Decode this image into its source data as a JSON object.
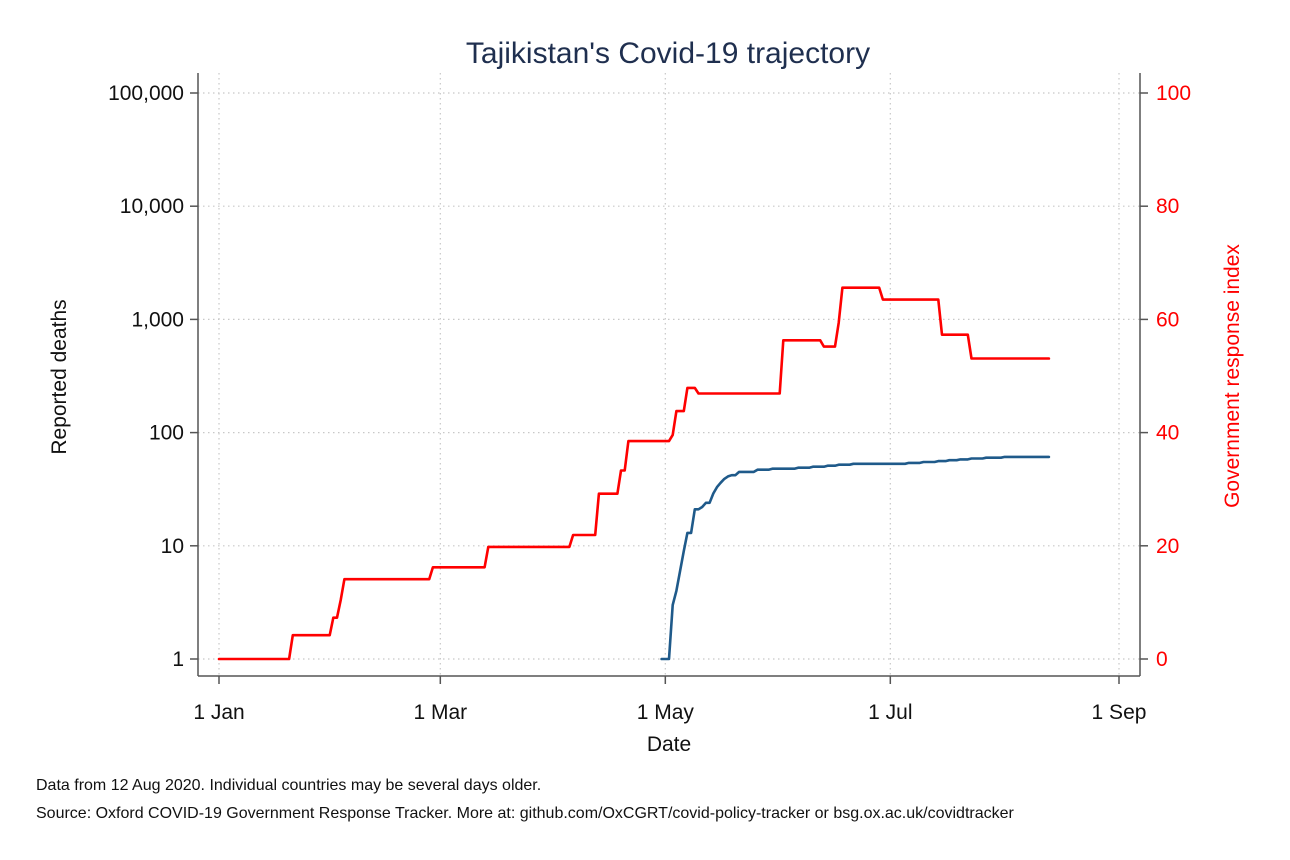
{
  "chart_data": {
    "type": "line",
    "title": "Tajikistan's Covid-19 trajectory",
    "xlabel": "Date",
    "ylabel_left": "Reported deaths",
    "ylabel_right": "Government response index",
    "x_ticks": [
      "1 Jan",
      "1 Mar",
      "1 May",
      "1 Jul",
      "1 Sep"
    ],
    "x_tick_dates": [
      "2020-01-01",
      "2020-03-01",
      "2020-05-01",
      "2020-07-01",
      "2020-09-01"
    ],
    "xlim": [
      "2020-01-01",
      "2020-09-01"
    ],
    "y_left_scale": "log",
    "y_left_ticks": [
      "1",
      "10",
      "100",
      "1,000",
      "10,000",
      "100,000"
    ],
    "y_left_tick_values": [
      1,
      10,
      100,
      1000,
      10000,
      100000
    ],
    "y_left_lim": [
      1,
      100000
    ],
    "y_right_ticks": [
      "0",
      "20",
      "40",
      "60",
      "80",
      "100"
    ],
    "y_right_tick_values": [
      0,
      20,
      40,
      60,
      80,
      100
    ],
    "y_right_lim": [
      0,
      100
    ],
    "grid": true,
    "series": [
      {
        "name": "Reported deaths",
        "axis": "left",
        "color": "#1f5a8a",
        "points": [
          [
            "2020-04-30",
            1
          ],
          [
            "2020-05-02",
            1
          ],
          [
            "2020-05-03",
            3
          ],
          [
            "2020-05-04",
            4
          ],
          [
            "2020-05-05",
            6
          ],
          [
            "2020-05-06",
            9
          ],
          [
            "2020-05-07",
            13
          ],
          [
            "2020-05-08",
            13
          ],
          [
            "2020-05-09",
            21
          ],
          [
            "2020-05-10",
            21
          ],
          [
            "2020-05-11",
            22
          ],
          [
            "2020-05-12",
            24
          ],
          [
            "2020-05-13",
            24
          ],
          [
            "2020-05-14",
            29
          ],
          [
            "2020-05-15",
            33
          ],
          [
            "2020-05-16",
            36
          ],
          [
            "2020-05-17",
            39
          ],
          [
            "2020-05-18",
            41
          ],
          [
            "2020-05-19",
            42
          ],
          [
            "2020-05-20",
            42
          ],
          [
            "2020-05-21",
            45
          ],
          [
            "2020-05-25",
            45
          ],
          [
            "2020-05-26",
            47
          ],
          [
            "2020-05-29",
            47
          ],
          [
            "2020-05-30",
            48
          ],
          [
            "2020-06-05",
            48
          ],
          [
            "2020-06-06",
            49
          ],
          [
            "2020-06-09",
            49
          ],
          [
            "2020-06-10",
            50
          ],
          [
            "2020-06-13",
            50
          ],
          [
            "2020-06-14",
            51
          ],
          [
            "2020-06-16",
            51
          ],
          [
            "2020-06-17",
            52
          ],
          [
            "2020-06-20",
            52
          ],
          [
            "2020-06-21",
            53
          ],
          [
            "2020-07-05",
            53
          ],
          [
            "2020-07-06",
            54
          ],
          [
            "2020-07-09",
            54
          ],
          [
            "2020-07-10",
            55
          ],
          [
            "2020-07-13",
            55
          ],
          [
            "2020-07-14",
            56
          ],
          [
            "2020-07-16",
            56
          ],
          [
            "2020-07-17",
            57
          ],
          [
            "2020-07-19",
            57
          ],
          [
            "2020-07-20",
            58
          ],
          [
            "2020-07-22",
            58
          ],
          [
            "2020-07-23",
            59
          ],
          [
            "2020-07-26",
            59
          ],
          [
            "2020-07-27",
            60
          ],
          [
            "2020-07-31",
            60
          ],
          [
            "2020-08-01",
            61
          ],
          [
            "2020-08-13",
            61
          ]
        ]
      },
      {
        "name": "Government response index",
        "axis": "right",
        "color": "#ff0000",
        "points": [
          [
            "2020-01-01",
            0
          ],
          [
            "2020-01-20",
            0
          ],
          [
            "2020-01-21",
            4.2
          ],
          [
            "2020-01-31",
            4.2
          ],
          [
            "2020-02-01",
            7.3
          ],
          [
            "2020-02-02",
            7.3
          ],
          [
            "2020-02-03",
            10.4
          ],
          [
            "2020-02-04",
            14.1
          ],
          [
            "2020-02-27",
            14.1
          ],
          [
            "2020-02-28",
            16.2
          ],
          [
            "2020-03-13",
            16.2
          ],
          [
            "2020-03-14",
            19.8
          ],
          [
            "2020-04-05",
            19.8
          ],
          [
            "2020-04-06",
            21.9
          ],
          [
            "2020-04-12",
            21.9
          ],
          [
            "2020-04-13",
            29.2
          ],
          [
            "2020-04-18",
            29.2
          ],
          [
            "2020-04-19",
            33.3
          ],
          [
            "2020-04-20",
            33.3
          ],
          [
            "2020-04-21",
            38.5
          ],
          [
            "2020-05-02",
            38.5
          ],
          [
            "2020-05-03",
            39.6
          ],
          [
            "2020-05-04",
            43.8
          ],
          [
            "2020-05-06",
            43.8
          ],
          [
            "2020-05-07",
            47.9
          ],
          [
            "2020-05-09",
            47.9
          ],
          [
            "2020-05-10",
            46.9
          ],
          [
            "2020-06-01",
            46.9
          ],
          [
            "2020-06-02",
            56.3
          ],
          [
            "2020-06-12",
            56.3
          ],
          [
            "2020-06-13",
            55.2
          ],
          [
            "2020-06-16",
            55.2
          ],
          [
            "2020-06-17",
            59.4
          ],
          [
            "2020-06-18",
            65.6
          ],
          [
            "2020-06-28",
            65.6
          ],
          [
            "2020-06-29",
            63.5
          ],
          [
            "2020-07-14",
            63.5
          ],
          [
            "2020-07-15",
            57.3
          ],
          [
            "2020-07-22",
            57.3
          ],
          [
            "2020-07-23",
            53.1
          ],
          [
            "2020-08-13",
            53.1
          ]
        ]
      }
    ]
  },
  "footer": {
    "note": "Data from 12 Aug 2020. Individual countries may be several days older.",
    "source": "Source: Oxford COVID-19 Government Response Tracker. More at: github.com/OxCGRT/covid-policy-tracker or bsg.ox.ac.uk/covidtracker"
  }
}
